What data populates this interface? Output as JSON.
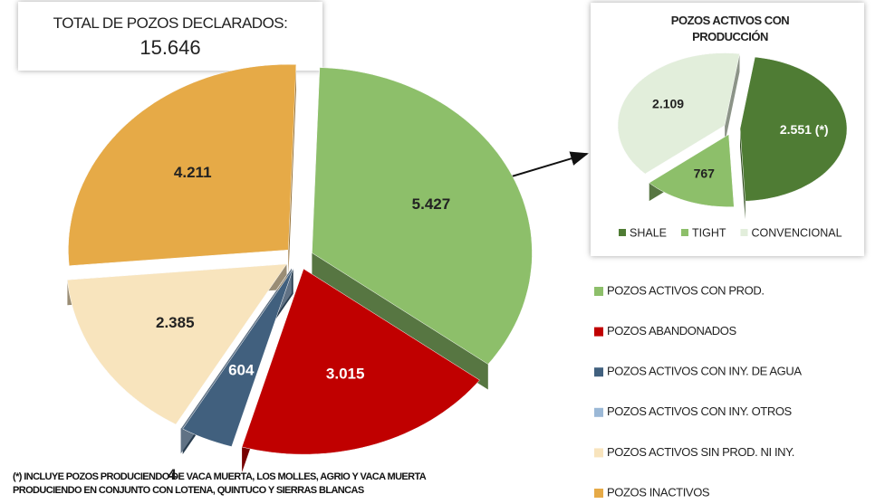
{
  "header": {
    "title": "TOTAL DE POZOS DECLARADOS:",
    "value": "15.646"
  },
  "chart_data": [
    {
      "type": "pie",
      "categories": [
        "POZOS ACTIVOS CON PROD.",
        "POZOS ABANDONADOS",
        "POZOS ACTIVOS CON INY. DE AGUA",
        "POZOS ACTIVOS CON INY. OTROS",
        "POZOS ACTIVOS SIN PROD. NI INY.",
        "POZOS INACTIVOS"
      ],
      "values": [
        5427,
        3015,
        604,
        4,
        2385,
        4211
      ],
      "value_labels": [
        "5.427",
        "3.015",
        "604",
        "4",
        "2.385",
        "4.211"
      ],
      "colors": [
        "#8dbf6a",
        "#c00000",
        "#41607e",
        "#9bb8d6",
        "#f8e4bd",
        "#e6aa47"
      ],
      "legend": "right"
    },
    {
      "type": "pie",
      "title": "POZOS ACTIVOS CON PRODUCCIÓN",
      "categories": [
        "SHALE",
        "TIGHT",
        "CONVENCIONAL"
      ],
      "values": [
        2551,
        767,
        2109
      ],
      "value_labels": [
        "2.551 (*)",
        "767",
        "2.109"
      ],
      "colors": [
        "#4f7c34",
        "#8dbf6a",
        "#e2eedb"
      ],
      "legend": "bottom"
    }
  ],
  "footnote": [
    "(*) INCLUYE POZOS PRODUCIENDO DE VACA MUERTA, LOS MOLLES, AGRIO Y VACA MUERTA",
    "PRODUCIENDO EN CONJUNTO CON LOTENA, QUINTUCO Y SIERRAS BLANCAS"
  ]
}
